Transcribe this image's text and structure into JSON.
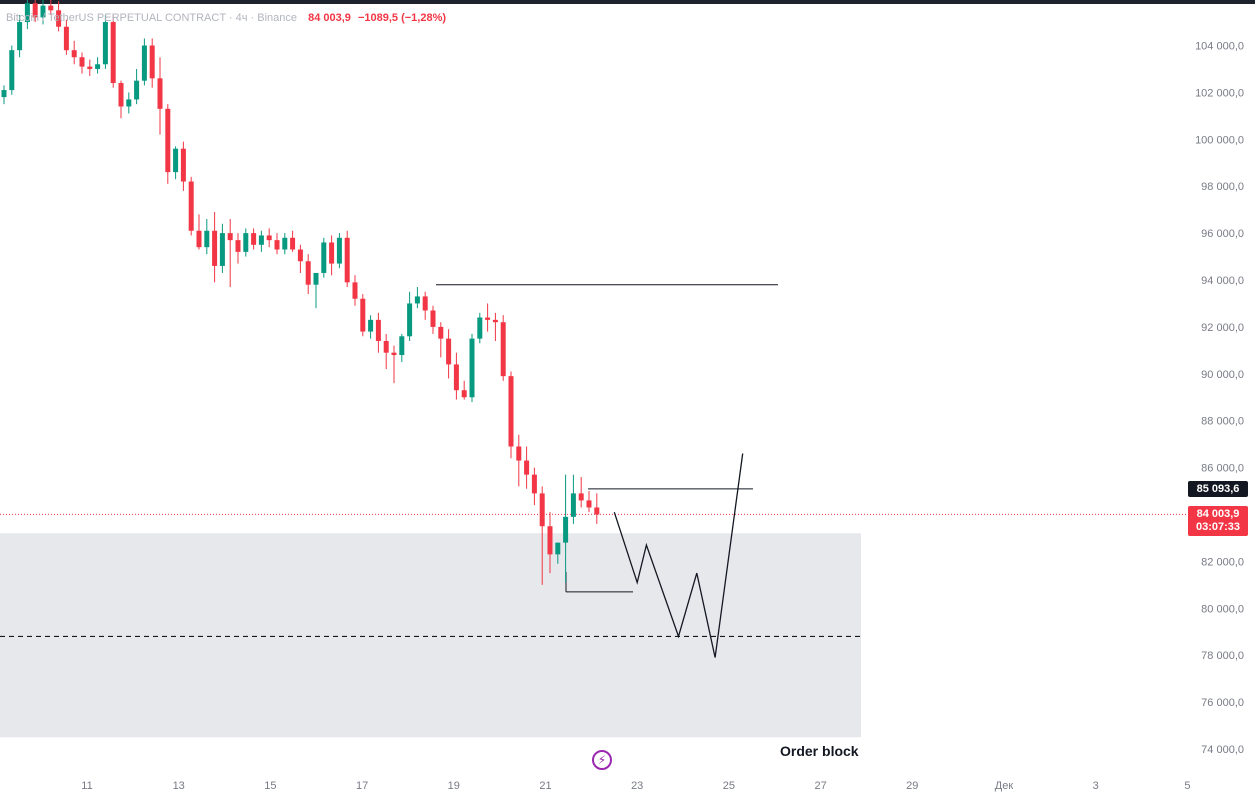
{
  "legend": {
    "symbol": "Bitcoin / TetherUS PERPETUAL CONTRACT · 4ч · Binance",
    "price": "84 003,9",
    "change": "−1089,5 (−1,28%)"
  },
  "tags": {
    "level": "85 093,6",
    "last_price": "84 003,9",
    "countdown": "03:07:33"
  },
  "annotations": {
    "order_block_label": "Order block"
  },
  "colors": {
    "up": "#089981",
    "down": "#f23645",
    "zone": "#e7e8ec",
    "axis_text": "#787b86"
  },
  "chart_data": {
    "type": "candlestick",
    "title": "",
    "xlabel": "",
    "ylabel": "",
    "ylim": [
      73000,
      106000
    ],
    "y_ticks": [
      "74 000,0",
      "76 000,0",
      "78 000,0",
      "80 000,0",
      "82 000,0",
      "84 000,0",
      "86 000,0",
      "88 000,0",
      "90 000,0",
      "92 000,0",
      "94 000,0",
      "96 000,0",
      "98 000,0",
      "100 000,0",
      "102 000,0",
      "104 000,0"
    ],
    "x_ticks": [
      "11",
      "13",
      "15",
      "17",
      "19",
      "21",
      "23",
      "25",
      "27",
      "29",
      "Дек",
      "3",
      "5"
    ],
    "candles": [
      [
        101800,
        102300,
        101500,
        102100
      ],
      [
        102100,
        104000,
        101900,
        103800
      ],
      [
        103800,
        105300,
        103500,
        105000
      ],
      [
        105000,
        106000,
        104700,
        105800
      ],
      [
        105800,
        106100,
        105000,
        105200
      ],
      [
        105200,
        106000,
        104900,
        105700
      ],
      [
        105700,
        106000,
        105300,
        105500
      ],
      [
        105500,
        105900,
        104600,
        104800
      ],
      [
        104800,
        105100,
        103600,
        103800
      ],
      [
        103800,
        104200,
        103200,
        103500
      ],
      [
        103500,
        103700,
        102800,
        103100
      ],
      [
        103100,
        103400,
        102700,
        103000
      ],
      [
        103000,
        103500,
        102800,
        103200
      ],
      [
        103200,
        105300,
        103000,
        105000
      ],
      [
        105000,
        105300,
        102200,
        102400
      ],
      [
        102400,
        102500,
        100900,
        101400
      ],
      [
        101400,
        102000,
        101100,
        101700
      ],
      [
        101700,
        103000,
        101500,
        102500
      ],
      [
        102500,
        104300,
        102300,
        104000
      ],
      [
        104000,
        104300,
        102200,
        102600
      ],
      [
        102600,
        103500,
        100200,
        101300
      ],
      [
        101300,
        101500,
        98100,
        98600
      ],
      [
        98600,
        99700,
        98300,
        99600
      ],
      [
        99600,
        99900,
        97800,
        98200
      ],
      [
        98200,
        98400,
        95900,
        96100
      ],
      [
        96100,
        96800,
        95300,
        95400
      ],
      [
        95400,
        96600,
        95100,
        96100
      ],
      [
        96100,
        96900,
        93900,
        94600
      ],
      [
        94600,
        96400,
        94300,
        96000
      ],
      [
        96000,
        96600,
        93700,
        95700
      ],
      [
        95700,
        96000,
        94700,
        95200
      ],
      [
        95200,
        96200,
        95000,
        96000
      ],
      [
        96000,
        96200,
        95300,
        95500
      ],
      [
        95500,
        96100,
        95200,
        95900
      ],
      [
        95900,
        96200,
        95400,
        95700
      ],
      [
        95700,
        96000,
        95100,
        95300
      ],
      [
        95300,
        96000,
        95100,
        95800
      ],
      [
        95800,
        96100,
        95200,
        95300
      ],
      [
        95300,
        95500,
        94300,
        94800
      ],
      [
        94800,
        95100,
        93400,
        93800
      ],
      [
        93800,
        94200,
        92800,
        94300
      ],
      [
        94300,
        95800,
        94100,
        95600
      ],
      [
        95600,
        95900,
        94200,
        94700
      ],
      [
        94700,
        96000,
        94500,
        95800
      ],
      [
        95800,
        96100,
        93700,
        93900
      ],
      [
        93900,
        94200,
        92900,
        93200
      ],
      [
        93200,
        93400,
        91600,
        91800
      ],
      [
        91800,
        92500,
        91500,
        92300
      ],
      [
        92300,
        92600,
        90900,
        91400
      ],
      [
        91400,
        91700,
        90200,
        90900
      ],
      [
        90900,
        91200,
        89600,
        90800
      ],
      [
        90800,
        91700,
        90500,
        91600
      ],
      [
        91600,
        93500,
        91400,
        93000
      ],
      [
        93000,
        93700,
        92800,
        93300
      ],
      [
        93300,
        93500,
        92300,
        92700
      ],
      [
        92700,
        92900,
        91700,
        92000
      ],
      [
        92000,
        92200,
        90700,
        91500
      ],
      [
        91500,
        91900,
        89800,
        90400
      ],
      [
        90400,
        90900,
        88900,
        89300
      ],
      [
        89300,
        89700,
        88900,
        89000
      ],
      [
        89000,
        91700,
        88800,
        91500
      ],
      [
        91500,
        92600,
        91300,
        92400
      ],
      [
        92400,
        93000,
        91800,
        92300
      ],
      [
        92300,
        92600,
        91400,
        92200
      ],
      [
        92200,
        92500,
        89700,
        89900
      ],
      [
        89900,
        90100,
        86400,
        86900
      ],
      [
        86900,
        87400,
        85200,
        86300
      ],
      [
        86300,
        86900,
        85100,
        85700
      ],
      [
        85700,
        86000,
        84400,
        84900
      ],
      [
        84900,
        85200,
        81000,
        83500
      ],
      [
        83500,
        84100,
        81500,
        82300
      ],
      [
        82300,
        82800,
        81900,
        82800
      ],
      [
        82800,
        85700,
        81100,
        83900
      ],
      [
        83900,
        85700,
        83600,
        84900
      ],
      [
        84900,
        85600,
        84300,
        84600
      ],
      [
        84600,
        85000,
        84100,
        84300
      ],
      [
        84300,
        84900,
        83600,
        84000
      ]
    ],
    "levels": {
      "resistance": 93800,
      "level_marker": 85093.6,
      "low_line": 80700,
      "last_price": 84003.9,
      "order_block_equilibrium": 78800
    },
    "order_block": {
      "y_from": 74500,
      "y_to": 83200
    },
    "projected_path": [
      {
        "date": "22.5",
        "price": 84100
      },
      {
        "date": "23.0",
        "price": 81100
      },
      {
        "date": "23.2",
        "price": 82700
      },
      {
        "date": "23.9",
        "price": 78800
      },
      {
        "date": "24.3",
        "price": 81500
      },
      {
        "date": "24.7",
        "price": 77900
      },
      {
        "date": "25.3",
        "price": 86600
      }
    ],
    "grid": false,
    "legend_position": "top-left"
  }
}
